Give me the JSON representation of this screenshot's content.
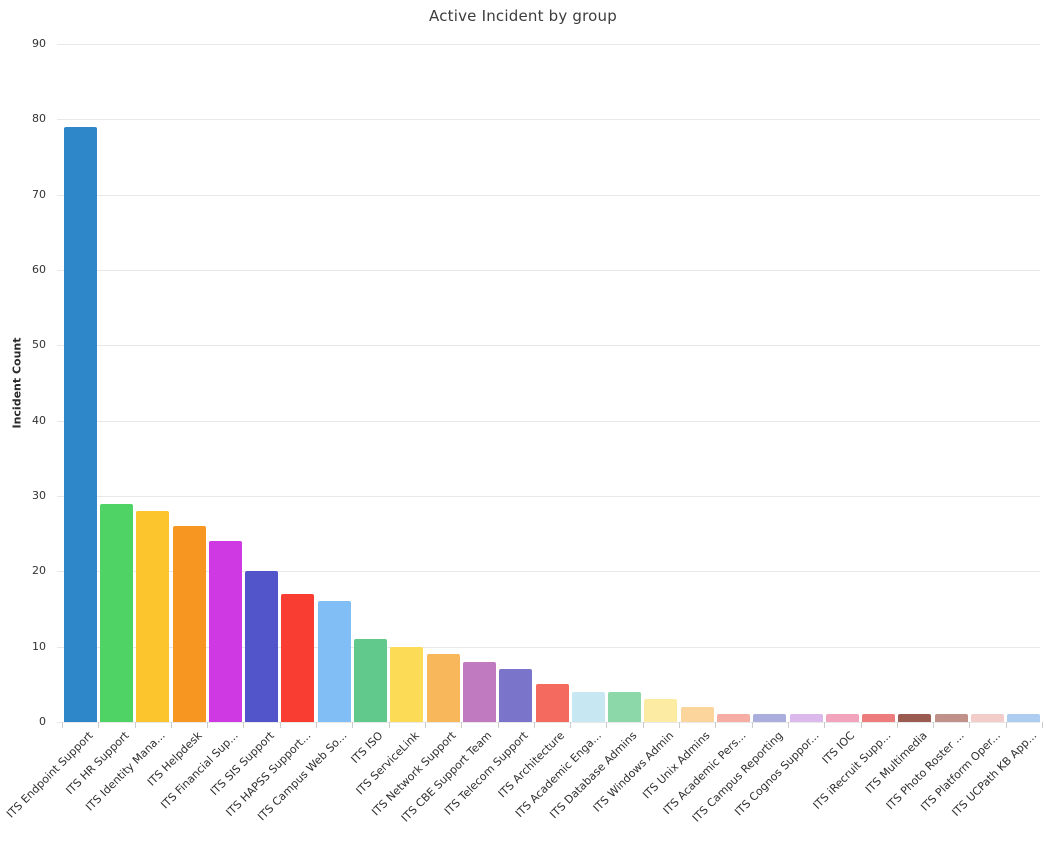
{
  "chart_data": {
    "type": "bar",
    "title": "Active Incident by group",
    "xlabel": "",
    "ylabel": "Incident Count",
    "ylim": [
      0,
      90
    ],
    "ytick_step": 10,
    "yticks": [
      0,
      10,
      20,
      30,
      40,
      50,
      60,
      70,
      80,
      90
    ],
    "grid": true,
    "legend": false,
    "categories": [
      "ITS Endpoint Support",
      "ITS HR Support",
      "ITS Identity Mana...",
      "ITS Helpdesk",
      "ITS Financial Sup...",
      "ITS SIS Support",
      "ITS HAPSS Support...",
      "ITS Campus Web So...",
      "ITS ISO",
      "ITS ServiceLink",
      "ITS Network Support",
      "ITS CBE Support Team",
      "ITS Telecom Support",
      "ITS Architecture",
      "ITS Academic Enga...",
      "ITS Database Admins",
      "ITS Windows Admin",
      "ITS Unix Admins",
      "ITS Academic Pers...",
      "ITS Campus Reporting",
      "ITS Cognos Suppor...",
      "ITS IOC",
      "ITS iRecruit Supp...",
      "ITS Multimedia",
      "ITS Photo Roster ...",
      "ITS Platform Oper...",
      "ITS UCPath KB App..."
    ],
    "values": [
      79,
      29,
      28,
      26,
      24,
      20,
      17,
      16,
      11,
      10,
      9,
      8,
      7,
      5,
      4,
      4,
      3,
      2,
      1,
      1,
      1,
      1,
      1,
      1,
      1,
      1,
      1
    ],
    "bar_colors": [
      "#2d87c9",
      "#4fd365",
      "#fcc52d",
      "#f79722",
      "#cf39e3",
      "#5254ca",
      "#f93d32",
      "#80bef5",
      "#61c98c",
      "#fcdb56",
      "#f8b75a",
      "#c07abf",
      "#7b74cb",
      "#f46a5f",
      "#c7e8f3",
      "#8dd8a9",
      "#fceca3",
      "#fbd59b",
      "#f5ada4",
      "#a9aedd",
      "#dcb9ec",
      "#f2a4bc",
      "#ed7d7d",
      "#9a5c51",
      "#c09189",
      "#f2cdc9",
      "#aecdf0"
    ],
    "colors": {
      "title": "#3d3d3d",
      "tick_text": "#333333",
      "gridline": "#e8e8e8",
      "tick_mark": "#cccccc",
      "background": "#ffffff"
    }
  }
}
